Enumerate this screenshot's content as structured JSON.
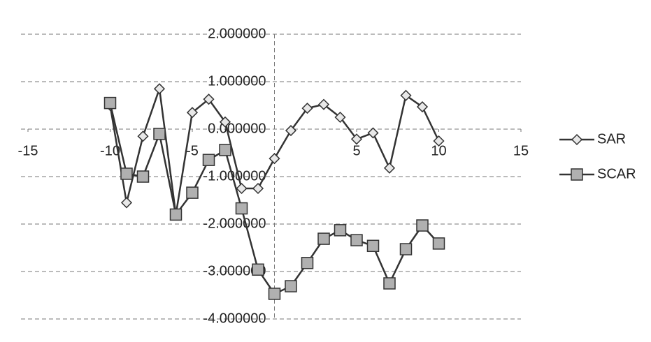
{
  "chart_data": {
    "type": "line",
    "x": [
      -10,
      -9,
      -8,
      -7,
      -6,
      -5,
      -4,
      -3,
      -2,
      -1,
      0,
      1,
      2,
      3,
      4,
      5,
      6,
      7,
      8,
      9,
      10
    ],
    "series": [
      {
        "name": "SAR",
        "color": "#333333",
        "marker": "diamond",
        "values": [
          0.5,
          -1.55,
          -0.15,
          0.85,
          -1.8,
          0.35,
          0.63,
          0.15,
          -1.25,
          -1.25,
          -0.62,
          -0.03,
          0.44,
          0.52,
          0.25,
          -0.21,
          -0.08,
          -0.82,
          0.71,
          0.47,
          -0.25
        ]
      },
      {
        "name": "SCAR",
        "color": "#333333",
        "marker": "square",
        "values": [
          0.55,
          -0.94,
          -1.0,
          -0.1,
          -1.8,
          -1.34,
          -0.65,
          -0.44,
          -1.67,
          -2.96,
          -3.47,
          -3.31,
          -2.82,
          -2.31,
          -2.13,
          -2.34,
          -2.46,
          -3.25,
          -2.53,
          -2.03,
          -2.41
        ]
      }
    ],
    "xlim": [
      -15,
      15
    ],
    "ylim": [
      -4,
      2
    ],
    "xticks": [
      -15,
      -10,
      -5,
      5,
      10,
      15
    ],
    "yticks": [
      {
        "value": -4,
        "label": "-4.000000"
      },
      {
        "value": -3,
        "label": "-3.000000"
      },
      {
        "value": -2,
        "label": "-2.000000"
      },
      {
        "value": -1,
        "label": "-1.000000"
      },
      {
        "value": 0,
        "label": "0.000000"
      },
      {
        "value": 1,
        "label": "1.000000"
      },
      {
        "value": 2,
        "label": "2.000000"
      }
    ],
    "grid": true,
    "legend": "right"
  }
}
